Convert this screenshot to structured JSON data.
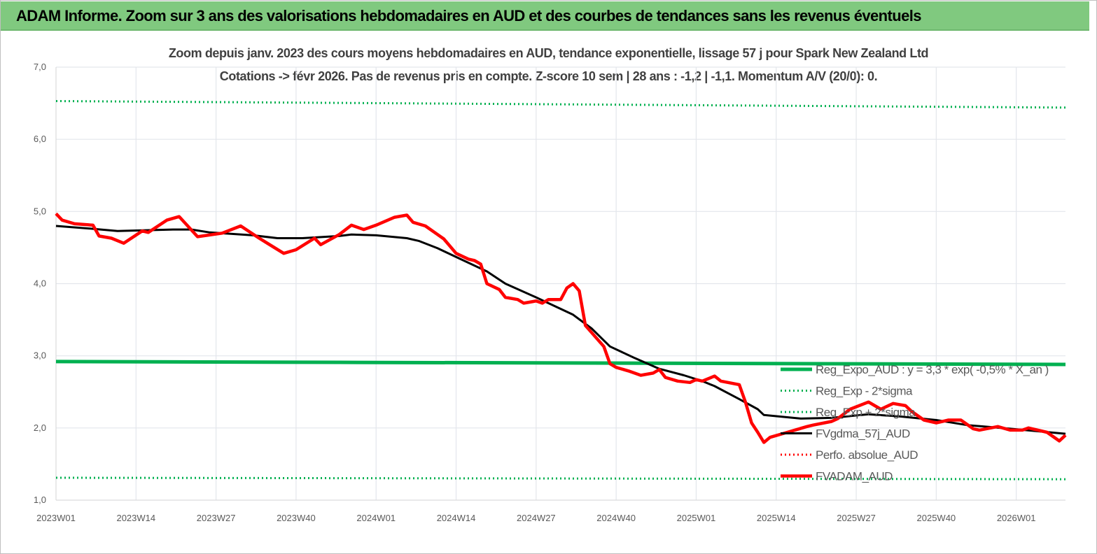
{
  "header": {
    "title": "ADAM Informe. Zoom sur 3 ans des valorisations hebdomadaires en AUD et des courbes de tendances sans les revenus éventuels"
  },
  "chart_data": {
    "type": "line",
    "title": "Zoom depuis janv. 2023 des cours moyens hebdomadaires en AUD, tendance exponentielle, lissage 57 j pour Spark New Zealand Ltd",
    "subtitle": "Cotations -> févr 2026.  Pas de revenus pris en compte. Z-score 10 sem | 28 ans : -1,2 | -1,1. Momentum A/V (20/0): 0.",
    "xlabel": "",
    "ylabel": "",
    "ylim": [
      1.0,
      7.0
    ],
    "xlim": [
      "2023W01",
      "2026W09"
    ],
    "y_ticks": [
      "1,0",
      "2,0",
      "3,0",
      "4,0",
      "5,0",
      "6,0",
      "7,0"
    ],
    "x_ticks": [
      "2023W01",
      "2023W14",
      "2023W27",
      "2023W40",
      "2024W01",
      "2024W14",
      "2024W27",
      "2024W40",
      "2025W01",
      "2025W14",
      "2025W27",
      "2025W40",
      "2026W01"
    ],
    "grid": true,
    "legend_position": "bottom-right inside",
    "series": [
      {
        "name": "Reg_Expo_AUD : y = 3,3 * exp( -0,5% *  X_an )",
        "color": "#00b050",
        "style": "solid-thick",
        "x": [
          "2023W01",
          "2023W47",
          "2026W09"
        ],
        "y": [
          2.92,
          2.91,
          2.88
        ]
      },
      {
        "name": "Reg_Exp - 2*sigma",
        "color": "#00b050",
        "style": "dotted",
        "x": [
          "2023W01",
          "2026W09"
        ],
        "y": [
          1.31,
          1.29
        ]
      },
      {
        "name": "Reg_Exp + 2*sigma",
        "color": "#00b050",
        "style": "dotted",
        "x": [
          "2023W01",
          "2026W09"
        ],
        "y": [
          6.53,
          6.44
        ]
      },
      {
        "name": "FVgdma_57j_AUD",
        "color": "#000000",
        "style": "solid",
        "x": [
          "2023W01",
          "2023W07",
          "2023W11",
          "2023W20",
          "2023W23",
          "2023W26",
          "2023W33",
          "2023W37",
          "2023W41",
          "2023W47",
          "2023W49",
          "2024W01",
          "2024W06",
          "2024W08",
          "2024W11",
          "2024W15",
          "2024W19",
          "2024W22",
          "2024W27",
          "2024W31",
          "2024W33",
          "2024W36",
          "2024W39",
          "2024W43",
          "2024W47",
          "2024W51",
          "2025W02",
          "2025W04",
          "2025W08",
          "2025W11",
          "2025W12",
          "2025W18",
          "2025W23",
          "2025W29",
          "2025W34",
          "2025W40",
          "2025W45",
          "2025W52",
          "2026W09"
        ],
        "y": [
          4.8,
          4.76,
          4.73,
          4.75,
          4.75,
          4.71,
          4.67,
          4.63,
          4.63,
          4.66,
          4.68,
          4.67,
          4.63,
          4.59,
          4.49,
          4.33,
          4.17,
          4.0,
          3.81,
          3.65,
          3.57,
          3.38,
          3.13,
          2.97,
          2.82,
          2.73,
          2.65,
          2.58,
          2.4,
          2.26,
          2.18,
          2.13,
          2.14,
          2.19,
          2.16,
          2.11,
          2.04,
          1.99,
          1.92
        ]
      },
      {
        "name": "Perfo. absolue_AUD",
        "color": "#ff0000",
        "style": "dotted",
        "x": [],
        "y": []
      },
      {
        "name": "FVADAM_AUD",
        "color": "#ff0000",
        "style": "solid-thick",
        "x": [
          "2023W01",
          "2023W02",
          "2023W04",
          "2023W07",
          "2023W08",
          "2023W10",
          "2023W12",
          "2023W15",
          "2023W16",
          "2023W19",
          "2023W21",
          "2023W24",
          "2023W28",
          "2023W31",
          "2023W34",
          "2023W38",
          "2023W40",
          "2023W43",
          "2023W44",
          "2023W47",
          "2023W49",
          "2023W51",
          "2024W01",
          "2024W04",
          "2024W06",
          "2024W07",
          "2024W09",
          "2024W11",
          "2024W12",
          "2024W14",
          "2024W16",
          "2024W17",
          "2024W18",
          "2024W19",
          "2024W21",
          "2024W22",
          "2024W24",
          "2024W25",
          "2024W27",
          "2024W28",
          "2024W29",
          "2024W31",
          "2024W32",
          "2024W33",
          "2024W34",
          "2024W35",
          "2024W38",
          "2024W39",
          "2024W40",
          "2024W42",
          "2024W44",
          "2024W46",
          "2024W47",
          "2024W48",
          "2024W50",
          "2024W52",
          "2025W01",
          "2025W02",
          "2025W04",
          "2025W05",
          "2025W08",
          "2025W09",
          "2025W10",
          "2025W11",
          "2025W12",
          "2025W13",
          "2025W15",
          "2025W19",
          "2025W20",
          "2025W23",
          "2025W24",
          "2025W26",
          "2025W29",
          "2025W31",
          "2025W33",
          "2025W35",
          "2025W36",
          "2025W38",
          "2025W40",
          "2025W42",
          "2025W44",
          "2025W46",
          "2025W47",
          "2025W50",
          "2025W52",
          "2026W02",
          "2026W03",
          "2026W06",
          "2026W08",
          "2026W09"
        ],
        "y": [
          4.97,
          4.88,
          4.83,
          4.81,
          4.66,
          4.63,
          4.56,
          4.73,
          4.71,
          4.88,
          4.93,
          4.65,
          4.7,
          4.8,
          4.63,
          4.42,
          4.47,
          4.63,
          4.54,
          4.68,
          4.81,
          4.75,
          4.81,
          4.92,
          4.95,
          4.85,
          4.8,
          4.68,
          4.62,
          4.42,
          4.34,
          4.32,
          4.27,
          4.0,
          3.92,
          3.81,
          3.78,
          3.73,
          3.76,
          3.73,
          3.78,
          3.78,
          3.94,
          4.0,
          3.9,
          3.42,
          3.13,
          2.89,
          2.84,
          2.79,
          2.73,
          2.76,
          2.81,
          2.7,
          2.65,
          2.63,
          2.67,
          2.65,
          2.72,
          2.65,
          2.6,
          2.36,
          2.07,
          1.94,
          1.8,
          1.87,
          1.92,
          2.02,
          2.04,
          2.09,
          2.13,
          2.26,
          2.36,
          2.26,
          2.34,
          2.31,
          2.23,
          2.11,
          2.07,
          2.11,
          2.11,
          1.99,
          1.97,
          2.02,
          1.97,
          1.97,
          2.0,
          1.94,
          1.82,
          1.9
        ]
      }
    ]
  }
}
